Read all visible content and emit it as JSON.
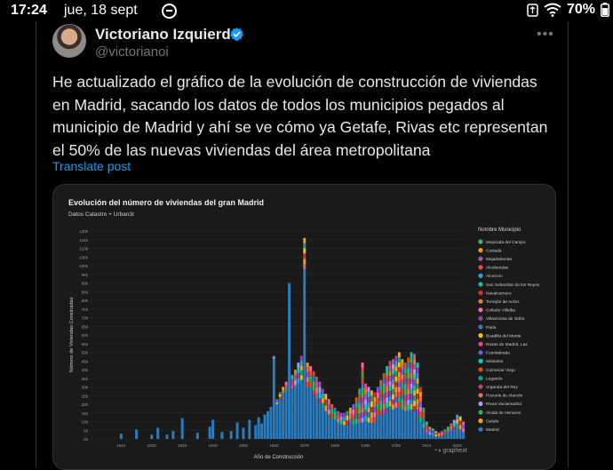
{
  "statusbar": {
    "time": "17:24",
    "date": "jue, 18 sept",
    "battery": "70%",
    "icons": [
      "do-not-disturb-icon",
      "sync-icon",
      "wifi-icon",
      "battery-icon"
    ]
  },
  "post": {
    "author_name": "Victoriano Izquierdo",
    "handle": "@victorianoi",
    "verified_color": "#1d9bf0",
    "text": "He actualizado el gráfico de la evolución de construcción de viviendas en Madrid, sacando los datos de todos los municipios pegados al municipio de Madrid y ahí se ve cómo ya Getafe, Rivas etc representan el 50% de las nuevas viviendas del área metropolitana",
    "translate_label": "Translate post",
    "more_icon": "more-options-icon"
  },
  "chart_data": {
    "type": "bar",
    "stacked": true,
    "title": "Evolución del número de viviendas del gran Madrid",
    "subtitle": "Datos Catastro + Urban3r",
    "xlabel": "Año de Construcción",
    "ylabel": "Número de Viviendas Construidas",
    "xlim": [
      1900,
      2023
    ],
    "ylim": [
      0,
      120000
    ],
    "x_ticks": [
      "1910",
      "1920",
      "1930",
      "1940",
      "1950",
      "1960",
      "1970",
      "1980",
      "1990",
      "2000",
      "2010",
      "2020"
    ],
    "y_ticks": [
      "0k",
      "5k",
      "10k",
      "15k",
      "20k",
      "25k",
      "30k",
      "35k",
      "40k",
      "45k",
      "50k",
      "55k",
      "60k",
      "65k",
      "70k",
      "75k",
      "80k",
      "85k",
      "90k",
      "95k",
      "100k",
      "105k",
      "110k",
      "115k",
      "120k"
    ],
    "legend_title": "Nombre Municipio",
    "legend_placement": "right",
    "grid": true,
    "watermark": "graphext",
    "series": [
      {
        "name": "Mejorada del Campo",
        "color": "#3cb371"
      },
      {
        "name": "Coslada",
        "color": "#f39c12"
      },
      {
        "name": "Majadahonda",
        "color": "#9b59b6"
      },
      {
        "name": "Alcobendas",
        "color": "#e74c3c"
      },
      {
        "name": "Alcorcón",
        "color": "#3498db"
      },
      {
        "name": "San Sebastián de los Reyes",
        "color": "#1abc9c"
      },
      {
        "name": "Navalcarnero",
        "color": "#c0392b"
      },
      {
        "name": "Torrejón de Ardoz",
        "color": "#e67e22"
      },
      {
        "name": "Collado Villalba",
        "color": "#ff69b4"
      },
      {
        "name": "Villaviciosa de Odón",
        "color": "#8e44ad"
      },
      {
        "name": "Parla",
        "color": "#2980b9"
      },
      {
        "name": "Boadilla del Monte",
        "color": "#f1c40f"
      },
      {
        "name": "Rozas de Madrid, Las",
        "color": "#e84393"
      },
      {
        "name": "Fuenlabrada",
        "color": "#6c5ce7"
      },
      {
        "name": "Móstoles",
        "color": "#00cec9"
      },
      {
        "name": "Colmenar Viejo",
        "color": "#d35400"
      },
      {
        "name": "Leganés",
        "color": "#16a085"
      },
      {
        "name": "Arganda del Rey",
        "color": "#c44569"
      },
      {
        "name": "Pozuelo de Alarcón",
        "color": "#e17055"
      },
      {
        "name": "Rivas-Vaciamadrid",
        "color": "#a29bfe"
      },
      {
        "name": "Alcalá de Henares",
        "color": "#27ae60"
      },
      {
        "name": "Getafe",
        "color": "#f5a623"
      },
      {
        "name": "Madrid",
        "color": "#2b7bbf"
      }
    ],
    "bars_madrid": [
      [
        1910,
        3000
      ],
      [
        1915,
        5500
      ],
      [
        1920,
        2500
      ],
      [
        1922,
        6500
      ],
      [
        1925,
        2500
      ],
      [
        1927,
        4500
      ],
      [
        1930,
        12000
      ],
      [
        1935,
        3500
      ],
      [
        1939,
        7000
      ],
      [
        1940,
        11000
      ],
      [
        1943,
        4000
      ],
      [
        1946,
        4500
      ],
      [
        1948,
        9500
      ],
      [
        1950,
        6500
      ],
      [
        1952,
        11000
      ],
      [
        1954,
        8000
      ],
      [
        1955,
        12500
      ],
      [
        1956,
        9000
      ],
      [
        1957,
        14000
      ],
      [
        1958,
        16000
      ],
      [
        1959,
        18500
      ],
      [
        1960,
        46000
      ],
      [
        1961,
        20000
      ],
      [
        1962,
        23000
      ],
      [
        1963,
        25000
      ],
      [
        1964,
        27000
      ],
      [
        1965,
        89000
      ],
      [
        1966,
        29000
      ],
      [
        1967,
        31000
      ],
      [
        1968,
        32000
      ],
      [
        1969,
        34000
      ],
      [
        1970,
        98000
      ],
      [
        1971,
        30000
      ],
      [
        1972,
        27000
      ],
      [
        1973,
        25000
      ],
      [
        1974,
        23000
      ],
      [
        1975,
        20000
      ],
      [
        1976,
        18000
      ],
      [
        1977,
        16000
      ],
      [
        1978,
        14000
      ],
      [
        1979,
        12000
      ],
      [
        1980,
        11000
      ],
      [
        1981,
        9500
      ],
      [
        1982,
        8500
      ],
      [
        1983,
        8000
      ],
      [
        1984,
        8000
      ],
      [
        1985,
        8000
      ],
      [
        1986,
        8000
      ],
      [
        1987,
        8500
      ],
      [
        1988,
        9000
      ],
      [
        1989,
        9500
      ],
      [
        1990,
        10500
      ],
      [
        1991,
        9500
      ],
      [
        1992,
        9000
      ],
      [
        1993,
        9500
      ],
      [
        1994,
        11000
      ],
      [
        1995,
        13000
      ],
      [
        1996,
        14000
      ],
      [
        1997,
        15000
      ],
      [
        1998,
        16000
      ],
      [
        1999,
        17000
      ],
      [
        2000,
        18000
      ],
      [
        2001,
        18500
      ],
      [
        2002,
        17000
      ],
      [
        2003,
        16000
      ],
      [
        2004,
        16500
      ],
      [
        2005,
        17000
      ],
      [
        2006,
        16000
      ],
      [
        2007,
        14000
      ],
      [
        2008,
        10000
      ],
      [
        2009,
        6000
      ],
      [
        2010,
        3500
      ],
      [
        2011,
        2500
      ],
      [
        2012,
        2000
      ],
      [
        2013,
        1500
      ],
      [
        2014,
        1200
      ],
      [
        2015,
        1500
      ],
      [
        2016,
        2000
      ],
      [
        2017,
        3000
      ],
      [
        2018,
        4000
      ],
      [
        2019,
        5000
      ],
      [
        2020,
        6000
      ],
      [
        2021,
        5500
      ],
      [
        2022,
        4000
      ]
    ],
    "bars_total": [
      [
        1960,
        48000
      ],
      [
        1961,
        23000
      ],
      [
        1962,
        27000
      ],
      [
        1963,
        30000
      ],
      [
        1964,
        33000
      ],
      [
        1965,
        90000
      ],
      [
        1966,
        37000
      ],
      [
        1967,
        40000
      ],
      [
        1968,
        44000
      ],
      [
        1969,
        48000
      ],
      [
        1970,
        116000
      ],
      [
        1971,
        44000
      ],
      [
        1972,
        42000
      ],
      [
        1973,
        39000
      ],
      [
        1974,
        36000
      ],
      [
        1975,
        33000
      ],
      [
        1976,
        29000
      ],
      [
        1977,
        26000
      ],
      [
        1978,
        23000
      ],
      [
        1979,
        20000
      ],
      [
        1980,
        18000
      ],
      [
        1981,
        16000
      ],
      [
        1982,
        15000
      ],
      [
        1983,
        15000
      ],
      [
        1984,
        16000
      ],
      [
        1985,
        18000
      ],
      [
        1986,
        20000
      ],
      [
        1987,
        24000
      ],
      [
        1988,
        29000
      ],
      [
        1989,
        44000
      ],
      [
        1990,
        32000
      ],
      [
        1991,
        30000
      ],
      [
        1992,
        28000
      ],
      [
        1993,
        27000
      ],
      [
        1994,
        30000
      ],
      [
        1995,
        34000
      ],
      [
        1996,
        38000
      ],
      [
        1997,
        42000
      ],
      [
        1998,
        45000
      ],
      [
        1999,
        46000
      ],
      [
        2000,
        48000
      ],
      [
        2001,
        50000
      ],
      [
        2002,
        46000
      ],
      [
        2003,
        44000
      ],
      [
        2004,
        47000
      ],
      [
        2005,
        50000
      ],
      [
        2006,
        49000
      ],
      [
        2007,
        44000
      ],
      [
        2008,
        30000
      ],
      [
        2009,
        18000
      ],
      [
        2010,
        10000
      ],
      [
        2011,
        7000
      ],
      [
        2012,
        6000
      ],
      [
        2013,
        4500
      ],
      [
        2014,
        4000
      ],
      [
        2015,
        4500
      ],
      [
        2016,
        5500
      ],
      [
        2017,
        7000
      ],
      [
        2018,
        9000
      ],
      [
        2019,
        11000
      ],
      [
        2020,
        14000
      ],
      [
        2021,
        13000
      ],
      [
        2022,
        10000
      ]
    ]
  }
}
